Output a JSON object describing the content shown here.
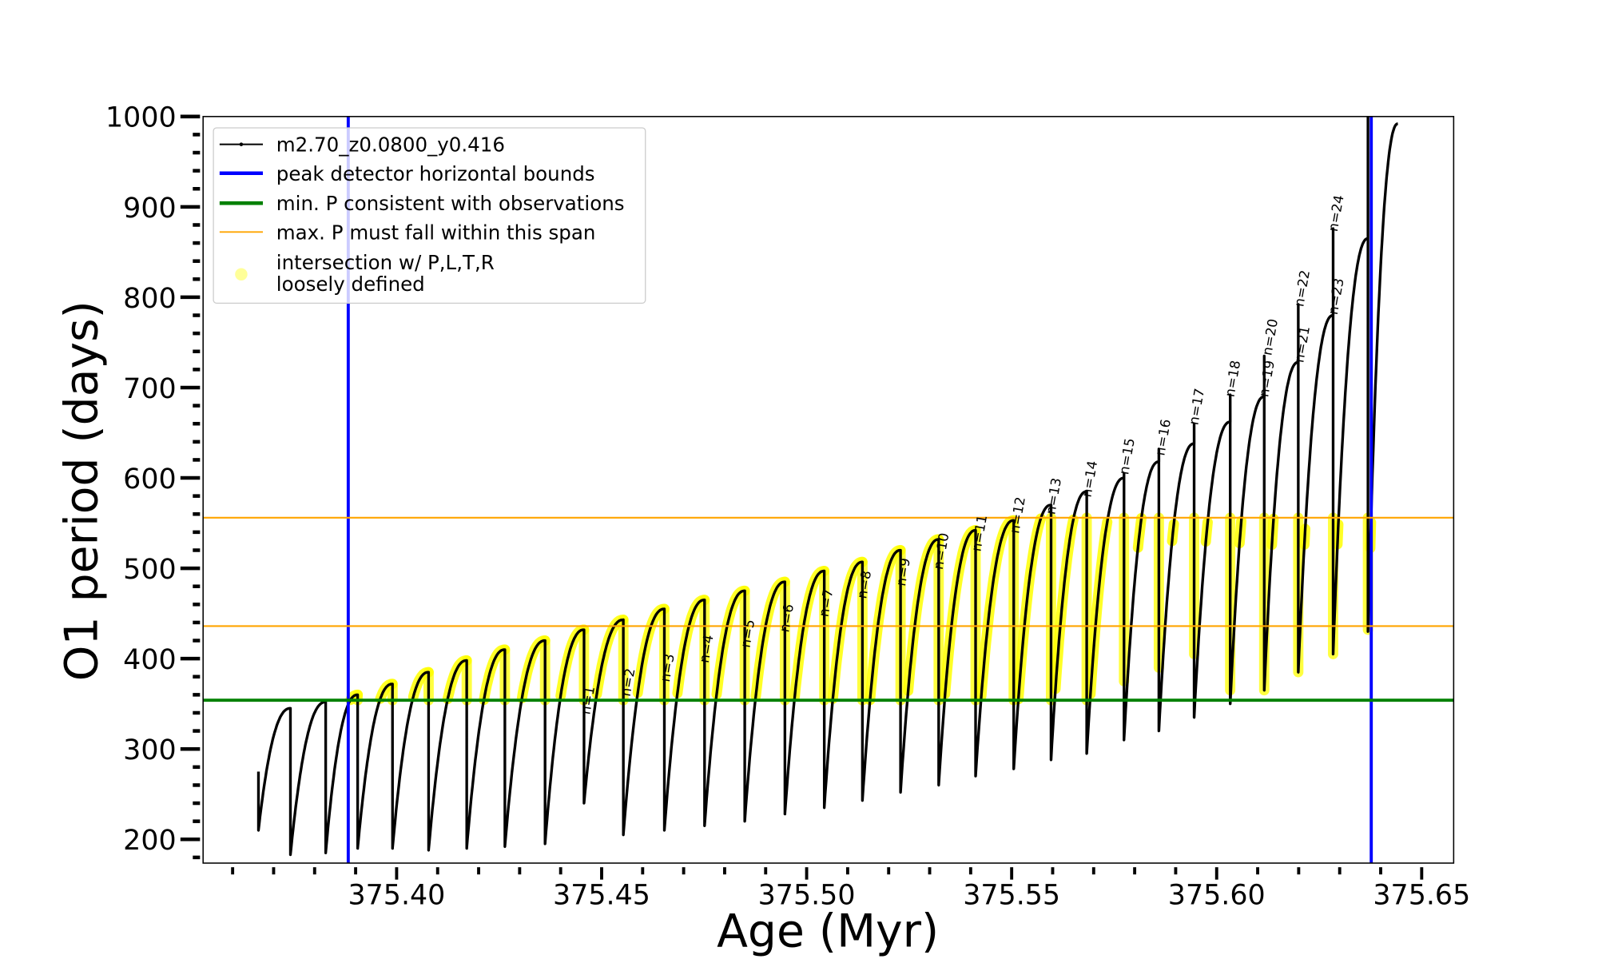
{
  "chart_data": {
    "type": "line",
    "xlabel": "Age (Myr)",
    "ylabel": "O1 period (days)",
    "xlim": [
      375.3528,
      375.6578
    ],
    "ylim": [
      173.7,
      1000
    ],
    "x_major_ticks": [
      375.4,
      375.45,
      375.5,
      375.55,
      375.6,
      375.65
    ],
    "x_tick_labels": [
      "375.40",
      "375.45",
      "375.50",
      "375.55",
      "375.60",
      "375.65"
    ],
    "x_minor_step": 0.01,
    "y_major_ticks": [
      200,
      300,
      400,
      500,
      600,
      700,
      800,
      900,
      1000
    ],
    "y_tick_labels": [
      "200",
      "300",
      "400",
      "500",
      "600",
      "700",
      "800",
      "900",
      "1000"
    ],
    "y_minor_step": 20,
    "grid": false,
    "legend_placement": "top-left",
    "colors": {
      "model": "#000000",
      "bounds": "#0000ff",
      "min_p": "#008000",
      "max_p_span": "#ffa500",
      "intersection": "#ffff00"
    },
    "series": [
      {
        "name": "m2.70_z0.0800_y0.416",
        "description_of_points": "drops: age where period collapses, peak period just before, minimum period just after, optional spike and lower bound of intersection points on the drop",
        "drops": [
          {
            "age": 375.3663,
            "peak": 275,
            "min": 210
          },
          {
            "age": 375.3741,
            "peak": 345,
            "min": 183
          },
          {
            "age": 375.3827,
            "peak": 352,
            "min": 185
          },
          {
            "age": 375.3905,
            "peak": 360,
            "min": 190,
            "ymin": 354
          },
          {
            "age": 375.399,
            "peak": 372,
            "min": 190,
            "ymin": 354
          },
          {
            "age": 375.4078,
            "peak": 385,
            "min": 188,
            "ymin": 354
          },
          {
            "age": 375.4171,
            "peak": 398,
            "min": 190,
            "ymin": 354
          },
          {
            "age": 375.4264,
            "peak": 410,
            "min": 192,
            "ymin": 354
          },
          {
            "age": 375.4362,
            "peak": 420,
            "min": 195,
            "ymin": 354
          },
          {
            "age": 375.4457,
            "peak": 432,
            "min": 240,
            "ymin": 354
          },
          {
            "age": 375.4553,
            "peak": 443,
            "min": 205,
            "ymin": 354
          },
          {
            "age": 375.4653,
            "peak": 455,
            "min": 210,
            "ymin": 354
          },
          {
            "age": 375.4751,
            "peak": 465,
            "min": 215,
            "ymin": 354
          },
          {
            "age": 375.4849,
            "peak": 475,
            "min": 220,
            "ymin": 354
          },
          {
            "age": 375.4947,
            "peak": 485,
            "min": 228,
            "ymin": 354
          },
          {
            "age": 375.5043,
            "peak": 497,
            "min": 235,
            "ymin": 354
          },
          {
            "age": 375.5136,
            "peak": 507,
            "min": 243,
            "ymin": 354
          },
          {
            "age": 375.5229,
            "peak": 520,
            "min": 252,
            "ymin": 354
          },
          {
            "age": 375.5322,
            "peak": 532,
            "min": 260,
            "ymin": 354
          },
          {
            "age": 375.5412,
            "peak": 542,
            "min": 270,
            "ymin": 354
          },
          {
            "age": 375.5505,
            "peak": 553,
            "min": 278,
            "ymin": 354
          },
          {
            "age": 375.5596,
            "peak": 570,
            "min": 288,
            "ymin": 354
          },
          {
            "age": 375.5683,
            "peak": 585,
            "min": 295,
            "ymin": 354
          },
          {
            "age": 375.5774,
            "peak": 600,
            "spike": 605,
            "min": 310,
            "ymin": 375
          },
          {
            "age": 375.5859,
            "peak": 618,
            "spike": 632,
            "min": 320,
            "ymin": 390
          },
          {
            "age": 375.5945,
            "peak": 638,
            "spike": 660,
            "min": 335,
            "ymin": 405
          },
          {
            "age": 375.6033,
            "peak": 662,
            "spike": 692,
            "min": 350,
            "ymin": 365
          },
          {
            "age": 375.6116,
            "peak": 690,
            "spike": 735,
            "min": 365,
            "ymin": 365
          },
          {
            "age": 375.6199,
            "peak": 728,
            "spike": 792,
            "min": 385,
            "ymin": 385
          },
          {
            "age": 375.6284,
            "peak": 780,
            "spike": 876,
            "min": 405,
            "ymin": 405
          },
          {
            "age": 375.6369,
            "peak": 865,
            "spike": 1000,
            "min": 430,
            "ymin": 432
          }
        ],
        "end": {
          "age": 375.6442,
          "period": 992
        }
      }
    ],
    "reference_lines": [
      {
        "name": "peak detector horizontal bounds",
        "orientation": "vertical",
        "values": [
          375.3882,
          375.6377
        ],
        "color": "#0000ff"
      },
      {
        "name": "min. P consistent with observations",
        "orientation": "horizontal",
        "values": [
          354
        ],
        "color": "#008000"
      },
      {
        "name": "max. P must fall within this span",
        "orientation": "horizontal",
        "values": [
          436,
          556
        ],
        "color": "#ffa500"
      }
    ],
    "intersection": {
      "name": "intersection w/ P,L,T,R\nloosely defined",
      "line1": "intersection w/ P,L,T,R",
      "line2": "loosely defined",
      "pmin": 354,
      "pmax": 556,
      "age_min": 375.3882
    },
    "legend": [
      {
        "label": "m2.70_z0.0800_y0.416",
        "color": "#000000",
        "style": "line-dot"
      },
      {
        "label": "peak detector horizontal bounds",
        "color": "#0000ff",
        "style": "thick"
      },
      {
        "label": "min. P consistent with observations",
        "color": "#008000",
        "style": "thick"
      },
      {
        "label": "max. P must fall within this span",
        "color": "#ffa500",
        "style": "thin"
      },
      {
        "label": "intersection w/ P,L,T,R",
        "label2": "loosely defined",
        "color": "#ffff00",
        "style": "marker"
      }
    ],
    "annotations": [
      {
        "text": "n=1",
        "age": 375.4477,
        "period": 353
      },
      {
        "text": "n=2",
        "age": 375.4575,
        "period": 373
      },
      {
        "text": "n=3",
        "age": 375.4671,
        "period": 389
      },
      {
        "text": "n=4",
        "age": 375.4766,
        "period": 410
      },
      {
        "text": "n=5",
        "age": 375.4867,
        "period": 427
      },
      {
        "text": "n=6",
        "age": 375.4962,
        "period": 444
      },
      {
        "text": "n=7",
        "age": 375.5058,
        "period": 461
      },
      {
        "text": "n=8",
        "age": 375.5151,
        "period": 481
      },
      {
        "text": "n=9",
        "age": 375.5246,
        "period": 495
      },
      {
        "text": "n=10",
        "age": 375.5339,
        "period": 518
      },
      {
        "text": "n=11",
        "age": 375.5432,
        "period": 538
      },
      {
        "text": "n=12",
        "age": 375.5525,
        "period": 558
      },
      {
        "text": "n=13",
        "age": 375.5613,
        "period": 579
      },
      {
        "text": "n=14",
        "age": 375.5701,
        "period": 598
      },
      {
        "text": "n=15",
        "age": 375.5792,
        "period": 623
      },
      {
        "text": "n=16",
        "age": 375.588,
        "period": 644
      },
      {
        "text": "n=17",
        "age": 375.5962,
        "period": 678
      },
      {
        "text": "n=18",
        "age": 375.605,
        "period": 709
      },
      {
        "text": "n=19",
        "age": 375.6133,
        "period": 709
      },
      {
        "text": "n=20",
        "age": 375.6141,
        "period": 755
      },
      {
        "text": "n=21",
        "age": 375.6219,
        "period": 747
      },
      {
        "text": "n=22",
        "age": 375.6219,
        "period": 809
      },
      {
        "text": "n=23",
        "age": 375.6302,
        "period": 800
      },
      {
        "text": "n=24",
        "age": 375.6302,
        "period": 892
      }
    ]
  }
}
